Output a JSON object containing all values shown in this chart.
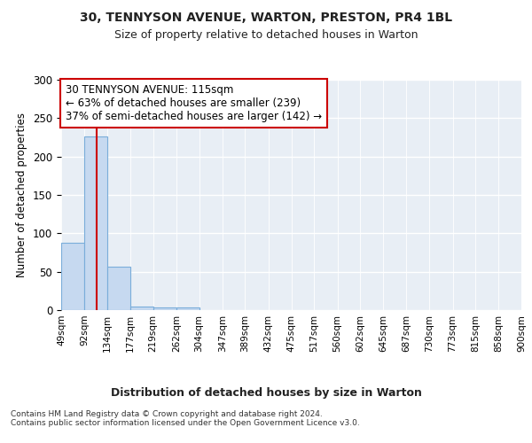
{
  "title1": "30, TENNYSON AVENUE, WARTON, PRESTON, PR4 1BL",
  "title2": "Size of property relative to detached houses in Warton",
  "xlabel": "Distribution of detached houses by size in Warton",
  "ylabel": "Number of detached properties",
  "bin_edges": [
    49,
    92,
    134,
    177,
    219,
    262,
    304,
    347,
    389,
    432,
    475,
    517,
    560,
    602,
    645,
    687,
    730,
    773,
    815,
    858,
    900
  ],
  "bar_heights": [
    88,
    226,
    57,
    5,
    4,
    3,
    0,
    0,
    0,
    0,
    0,
    0,
    0,
    0,
    0,
    0,
    0,
    0,
    0,
    0
  ],
  "bar_color": "#c6d9f0",
  "bar_edge_color": "#7aadda",
  "property_size": 115,
  "red_line_color": "#cc0000",
  "annotation_line1": "30 TENNYSON AVENUE: 115sqm",
  "annotation_line2": "← 63% of detached houses are smaller (239)",
  "annotation_line3": "37% of semi-detached houses are larger (142) →",
  "annotation_box_color": "#ffffff",
  "annotation_box_edge": "#cc0000",
  "ylim": [
    0,
    300
  ],
  "yticks": [
    0,
    50,
    100,
    150,
    200,
    250,
    300
  ],
  "footnote": "Contains HM Land Registry data © Crown copyright and database right 2024.\nContains public sector information licensed under the Open Government Licence v3.0.",
  "bg_color": "#ffffff",
  "plot_bg_color": "#e8eef5"
}
